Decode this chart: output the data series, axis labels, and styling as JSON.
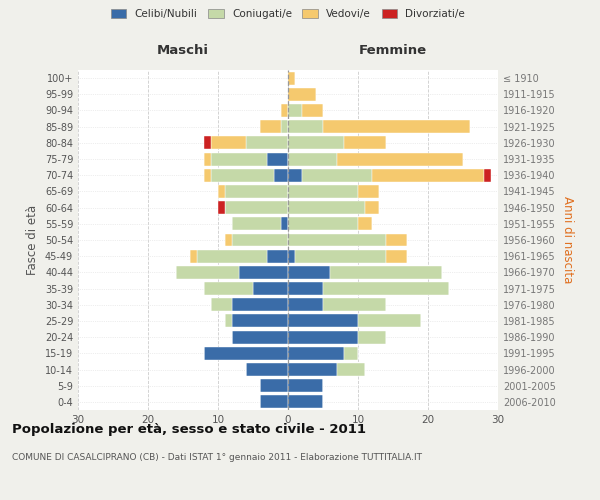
{
  "age_groups": [
    "0-4",
    "5-9",
    "10-14",
    "15-19",
    "20-24",
    "25-29",
    "30-34",
    "35-39",
    "40-44",
    "45-49",
    "50-54",
    "55-59",
    "60-64",
    "65-69",
    "70-74",
    "75-79",
    "80-84",
    "85-89",
    "90-94",
    "95-99",
    "100+"
  ],
  "birth_years": [
    "2006-2010",
    "2001-2005",
    "1996-2000",
    "1991-1995",
    "1986-1990",
    "1981-1985",
    "1976-1980",
    "1971-1975",
    "1966-1970",
    "1961-1965",
    "1956-1960",
    "1951-1955",
    "1946-1950",
    "1941-1945",
    "1936-1940",
    "1931-1935",
    "1926-1930",
    "1921-1925",
    "1916-1920",
    "1911-1915",
    "≤ 1910"
  ],
  "males": {
    "celibi": [
      4,
      4,
      6,
      12,
      8,
      8,
      8,
      5,
      7,
      3,
      0,
      1,
      0,
      0,
      2,
      3,
      0,
      0,
      0,
      0,
      0
    ],
    "coniugati": [
      0,
      0,
      0,
      0,
      0,
      1,
      3,
      7,
      9,
      10,
      8,
      7,
      9,
      9,
      9,
      8,
      6,
      1,
      0,
      0,
      0
    ],
    "vedovi": [
      0,
      0,
      0,
      0,
      0,
      0,
      0,
      0,
      0,
      1,
      1,
      0,
      0,
      1,
      1,
      1,
      5,
      3,
      1,
      0,
      0
    ],
    "divorziati": [
      0,
      0,
      0,
      0,
      0,
      0,
      0,
      0,
      0,
      0,
      0,
      0,
      1,
      0,
      0,
      0,
      1,
      0,
      0,
      0,
      0
    ]
  },
  "females": {
    "nubili": [
      5,
      5,
      7,
      8,
      10,
      10,
      5,
      5,
      6,
      1,
      0,
      0,
      0,
      0,
      2,
      0,
      0,
      0,
      0,
      0,
      0
    ],
    "coniugate": [
      0,
      0,
      4,
      2,
      4,
      9,
      9,
      18,
      16,
      13,
      14,
      10,
      11,
      10,
      10,
      7,
      8,
      5,
      2,
      0,
      0
    ],
    "vedove": [
      0,
      0,
      0,
      0,
      0,
      0,
      0,
      0,
      0,
      3,
      3,
      2,
      2,
      3,
      16,
      18,
      6,
      21,
      3,
      4,
      1
    ],
    "divorziate": [
      0,
      0,
      0,
      0,
      0,
      0,
      0,
      0,
      0,
      0,
      0,
      0,
      0,
      0,
      1,
      0,
      0,
      0,
      0,
      0,
      0
    ]
  },
  "colors": {
    "celibi": "#3a6ca8",
    "coniugati": "#c5d9a8",
    "vedovi": "#f5c96e",
    "divorziati": "#cc2222"
  },
  "title": "Popolazione per età, sesso e stato civile - 2011",
  "subtitle": "COMUNE DI CASALCIPRANO (CB) - Dati ISTAT 1° gennaio 2011 - Elaborazione TUTTITALIA.IT",
  "xlabel_left": "Maschi",
  "xlabel_right": "Femmine",
  "ylabel_left": "Fasce di età",
  "ylabel_right": "Anni di nascita",
  "xlim": 30,
  "bg_color": "#f0f0eb",
  "plot_bg": "#ffffff",
  "legend_labels": [
    "Celibi/Nubili",
    "Coniugati/e",
    "Vedovi/e",
    "Divorziati/e"
  ]
}
